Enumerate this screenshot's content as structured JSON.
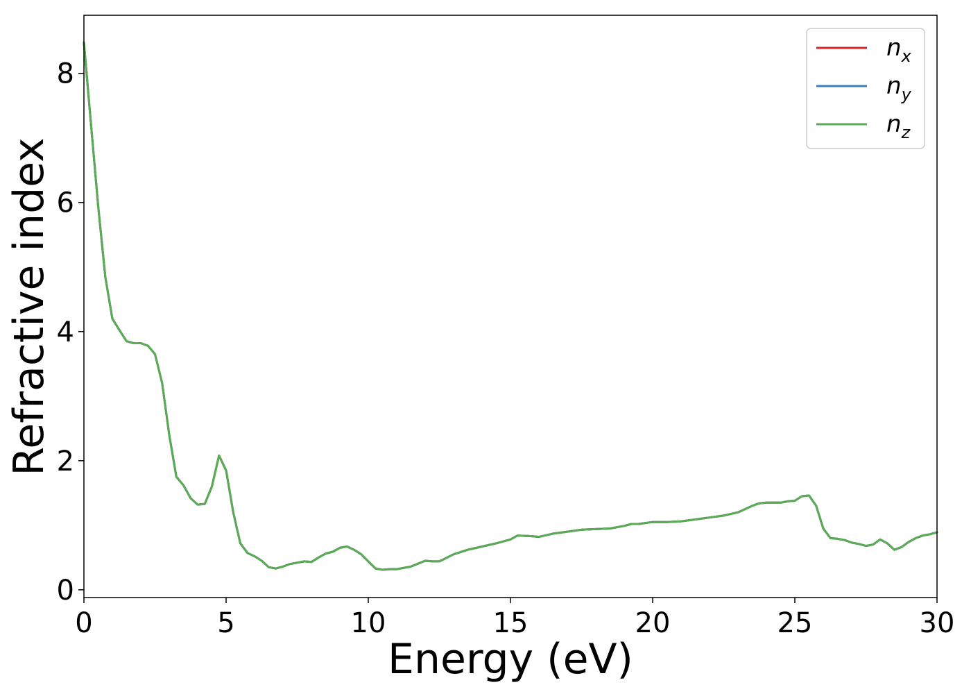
{
  "chart_data": {
    "type": "line",
    "xlabel": "Energy (eV)",
    "ylabel": "Refractive index",
    "xlim": [
      0,
      30
    ],
    "ylim": [
      -0.12,
      8.9
    ],
    "xticks": [
      "0",
      "5",
      "10",
      "15",
      "20",
      "25",
      "30"
    ],
    "yticks": [
      "0",
      "2",
      "4",
      "6",
      "8"
    ],
    "grid": false,
    "legend_position": "top-right",
    "x": [
      0.0,
      0.25,
      0.5,
      0.75,
      1.0,
      1.25,
      1.5,
      1.75,
      2.0,
      2.25,
      2.5,
      2.75,
      3.0,
      3.25,
      3.5,
      3.75,
      4.0,
      4.25,
      4.5,
      4.75,
      5.0,
      5.25,
      5.5,
      5.75,
      6.0,
      6.25,
      6.5,
      6.75,
      7.0,
      7.25,
      7.5,
      7.75,
      8.0,
      8.25,
      8.5,
      8.75,
      9.0,
      9.25,
      9.5,
      9.75,
      10.0,
      10.25,
      10.5,
      10.75,
      11.0,
      11.5,
      12.0,
      12.25,
      12.5,
      13.0,
      13.5,
      14.0,
      14.5,
      15.0,
      15.25,
      15.75,
      16.0,
      16.5,
      17.0,
      17.5,
      18.0,
      18.5,
      19.0,
      19.25,
      19.5,
      20.0,
      20.5,
      21.0,
      21.5,
      22.0,
      22.5,
      23.0,
      23.25,
      23.5,
      23.75,
      24.0,
      24.5,
      24.75,
      25.0,
      25.25,
      25.5,
      25.75,
      26.0,
      26.25,
      26.5,
      26.75,
      27.0,
      27.25,
      27.5,
      27.75,
      28.0,
      28.25,
      28.5,
      28.75,
      29.0,
      29.25,
      29.5,
      29.75,
      30.0
    ],
    "series": [
      {
        "name": "n_x",
        "name_base": "n",
        "name_sub": "x",
        "color": "#d62728",
        "values": [
          8.48,
          7.2,
          5.95,
          4.85,
          4.2,
          4.02,
          3.85,
          3.82,
          3.82,
          3.78,
          3.65,
          3.2,
          2.4,
          1.75,
          1.62,
          1.42,
          1.32,
          1.33,
          1.6,
          2.08,
          1.85,
          1.2,
          0.72,
          0.57,
          0.52,
          0.45,
          0.35,
          0.33,
          0.36,
          0.4,
          0.42,
          0.44,
          0.43,
          0.5,
          0.56,
          0.59,
          0.65,
          0.67,
          0.62,
          0.55,
          0.44,
          0.33,
          0.31,
          0.32,
          0.32,
          0.36,
          0.45,
          0.44,
          0.44,
          0.55,
          0.62,
          0.67,
          0.72,
          0.78,
          0.84,
          0.83,
          0.82,
          0.87,
          0.9,
          0.93,
          0.94,
          0.95,
          0.99,
          1.02,
          1.02,
          1.05,
          1.05,
          1.06,
          1.09,
          1.12,
          1.15,
          1.2,
          1.25,
          1.3,
          1.34,
          1.35,
          1.35,
          1.37,
          1.38,
          1.45,
          1.46,
          1.3,
          0.95,
          0.8,
          0.79,
          0.77,
          0.73,
          0.71,
          0.68,
          0.7,
          0.78,
          0.72,
          0.62,
          0.66,
          0.74,
          0.8,
          0.84,
          0.86,
          0.89
        ]
      },
      {
        "name": "n_y",
        "name_base": "n",
        "name_sub": "y",
        "color": "#3a7ebf",
        "values": [
          8.48,
          7.2,
          5.95,
          4.85,
          4.2,
          4.02,
          3.85,
          3.82,
          3.82,
          3.78,
          3.65,
          3.2,
          2.4,
          1.75,
          1.62,
          1.42,
          1.32,
          1.33,
          1.6,
          2.08,
          1.85,
          1.2,
          0.72,
          0.57,
          0.52,
          0.45,
          0.35,
          0.33,
          0.36,
          0.4,
          0.42,
          0.44,
          0.43,
          0.5,
          0.56,
          0.59,
          0.65,
          0.67,
          0.62,
          0.55,
          0.44,
          0.33,
          0.31,
          0.32,
          0.32,
          0.36,
          0.45,
          0.44,
          0.44,
          0.55,
          0.62,
          0.67,
          0.72,
          0.78,
          0.84,
          0.83,
          0.82,
          0.87,
          0.9,
          0.93,
          0.94,
          0.95,
          0.99,
          1.02,
          1.02,
          1.05,
          1.05,
          1.06,
          1.09,
          1.12,
          1.15,
          1.2,
          1.25,
          1.3,
          1.34,
          1.35,
          1.35,
          1.37,
          1.38,
          1.45,
          1.46,
          1.3,
          0.95,
          0.8,
          0.79,
          0.77,
          0.73,
          0.71,
          0.68,
          0.7,
          0.78,
          0.72,
          0.62,
          0.66,
          0.74,
          0.8,
          0.84,
          0.86,
          0.89
        ]
      },
      {
        "name": "n_z",
        "name_base": "n",
        "name_sub": "z",
        "color": "#5aac54",
        "values": [
          8.48,
          7.2,
          5.95,
          4.85,
          4.2,
          4.02,
          3.85,
          3.82,
          3.82,
          3.78,
          3.65,
          3.2,
          2.4,
          1.75,
          1.62,
          1.42,
          1.32,
          1.33,
          1.6,
          2.08,
          1.85,
          1.2,
          0.72,
          0.57,
          0.52,
          0.45,
          0.35,
          0.33,
          0.36,
          0.4,
          0.42,
          0.44,
          0.43,
          0.5,
          0.56,
          0.59,
          0.65,
          0.67,
          0.62,
          0.55,
          0.44,
          0.33,
          0.31,
          0.32,
          0.32,
          0.36,
          0.45,
          0.44,
          0.44,
          0.55,
          0.62,
          0.67,
          0.72,
          0.78,
          0.84,
          0.83,
          0.82,
          0.87,
          0.9,
          0.93,
          0.94,
          0.95,
          0.99,
          1.02,
          1.02,
          1.05,
          1.05,
          1.06,
          1.09,
          1.12,
          1.15,
          1.2,
          1.25,
          1.3,
          1.34,
          1.35,
          1.35,
          1.37,
          1.38,
          1.45,
          1.46,
          1.3,
          0.95,
          0.8,
          0.79,
          0.77,
          0.73,
          0.71,
          0.68,
          0.7,
          0.78,
          0.72,
          0.62,
          0.66,
          0.74,
          0.8,
          0.84,
          0.86,
          0.89
        ]
      }
    ]
  }
}
